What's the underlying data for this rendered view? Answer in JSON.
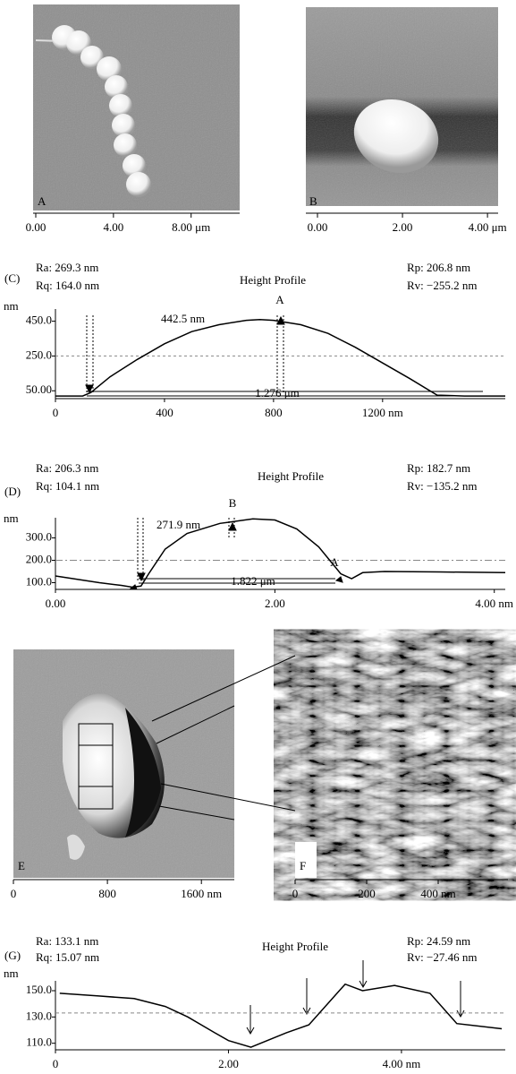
{
  "chart_data": [
    {
      "type": "image",
      "label": "A",
      "xlim": [
        0,
        10.5
      ],
      "xticks": [
        {
          "value": 0,
          "label": "0.00"
        },
        {
          "value": 4,
          "label": "4.00"
        },
        {
          "value": 8,
          "label": "8.00 μm"
        }
      ]
    },
    {
      "type": "image",
      "label": "B",
      "xlim": [
        0,
        4.25
      ],
      "xticks": [
        {
          "value": 0,
          "label": "0.00"
        },
        {
          "value": 2,
          "label": "2.00"
        },
        {
          "value": 4,
          "label": "4.00 μm"
        }
      ]
    },
    {
      "type": "line",
      "panel": "(C)",
      "title": "Height Profile",
      "stats": [
        "Ra: 269.3 nm",
        "Rq: 164.0 nm",
        "Rp: 206.8 nm",
        "Rv: −255.2 nm"
      ],
      "y_unit": "nm",
      "annotations": [
        "442.5 nm",
        "1.276 μm",
        "A"
      ],
      "x": [
        0,
        100,
        130,
        200,
        300,
        400,
        500,
        600,
        700,
        750,
        800,
        900,
        1000,
        1100,
        1200,
        1300,
        1400,
        1500,
        1650
      ],
      "values": [
        20,
        20,
        40,
        130,
        230,
        320,
        390,
        430,
        455,
        460,
        455,
        430,
        380,
        300,
        210,
        120,
        25,
        20,
        20
      ],
      "color": "#000000",
      "xlim": [
        0,
        1650
      ],
      "ylim": [
        5,
        520
      ],
      "xticks": [
        0,
        400,
        800,
        {
          "value": 1200,
          "label": "1200 nm"
        }
      ],
      "yticks": [
        {
          "value": 50,
          "label": "50.00"
        },
        {
          "value": 250,
          "label": "250.0"
        },
        {
          "value": 450,
          "label": "450.0"
        }
      ],
      "reference_line": 250
    },
    {
      "type": "line",
      "panel": "(D)",
      "title": "Height Profile",
      "stats": [
        "Ra: 206.3 nm",
        "Rq: 104.1 nm",
        "Rp: 182.7 nm",
        "Rv: −135.2 nm"
      ],
      "y_unit": "nm",
      "annotations": [
        "271.9 nm",
        "1.822 μm",
        "B",
        "A"
      ],
      "x": [
        0,
        0.2,
        0.4,
        0.6,
        0.7,
        0.78,
        0.85,
        1.0,
        1.2,
        1.5,
        1.8,
        2.0,
        2.2,
        2.4,
        2.5,
        2.6,
        2.7,
        2.8,
        3.0,
        3.5,
        4.1
      ],
      "values": [
        130,
        115,
        100,
        88,
        80,
        85,
        140,
        250,
        320,
        365,
        385,
        380,
        340,
        260,
        200,
        140,
        118,
        145,
        150,
        148,
        145
      ],
      "color": "#000000",
      "xlim": [
        0,
        4.1
      ],
      "ylim": [
        70,
        390
      ],
      "xticks": [
        {
          "value": 0,
          "label": "0.00"
        },
        {
          "value": 2,
          "label": "2.00"
        },
        {
          "value": 4,
          "label": "4.00 nm"
        }
      ],
      "yticks": [
        {
          "value": 100,
          "label": "100.0"
        },
        {
          "value": 200,
          "label": "200.0"
        },
        {
          "value": 300,
          "label": "300.0"
        }
      ],
      "reference_line": 200
    },
    {
      "type": "image",
      "label": "E",
      "xlim": [
        0,
        1880
      ],
      "xticks": [
        0,
        800,
        {
          "value": 1600,
          "label": "1600 nm"
        }
      ]
    },
    {
      "type": "image",
      "label": "F",
      "xlim": [
        0,
        595
      ],
      "xticks": [
        0,
        200,
        {
          "value": 400,
          "label": "400 nm"
        }
      ]
    },
    {
      "type": "line",
      "panel": "(G)",
      "title": "Height Profile",
      "stats": [
        "Ra: 133.1 nm",
        "Rq: 15.07 nm",
        "Rp: 24.59 nm",
        "Rv: −27.46 nm"
      ],
      "y_unit": "nm",
      "x": [
        0.05,
        0.5,
        0.91,
        1.27,
        1.53,
        1.84,
        2.0,
        2.26,
        2.67,
        2.93,
        3.35,
        3.55,
        3.92,
        4.33,
        4.64,
        5.16
      ],
      "values": [
        148,
        146,
        144,
        138,
        130,
        118,
        112,
        107,
        118,
        124,
        155,
        150,
        154,
        148,
        125,
        121
      ],
      "color": "#000000",
      "xlim": [
        0,
        5.2
      ],
      "ylim": [
        105,
        157.5
      ],
      "xticks": [
        0,
        {
          "value": 2,
          "label": "2.00"
        },
        {
          "value": 4,
          "label": "4.00 nm"
        }
      ],
      "yticks": [
        {
          "value": 110,
          "label": "110.0"
        },
        {
          "value": 130,
          "label": "130.0"
        },
        {
          "value": 150,
          "label": "150.0"
        }
      ],
      "reference_line": 133
    }
  ]
}
